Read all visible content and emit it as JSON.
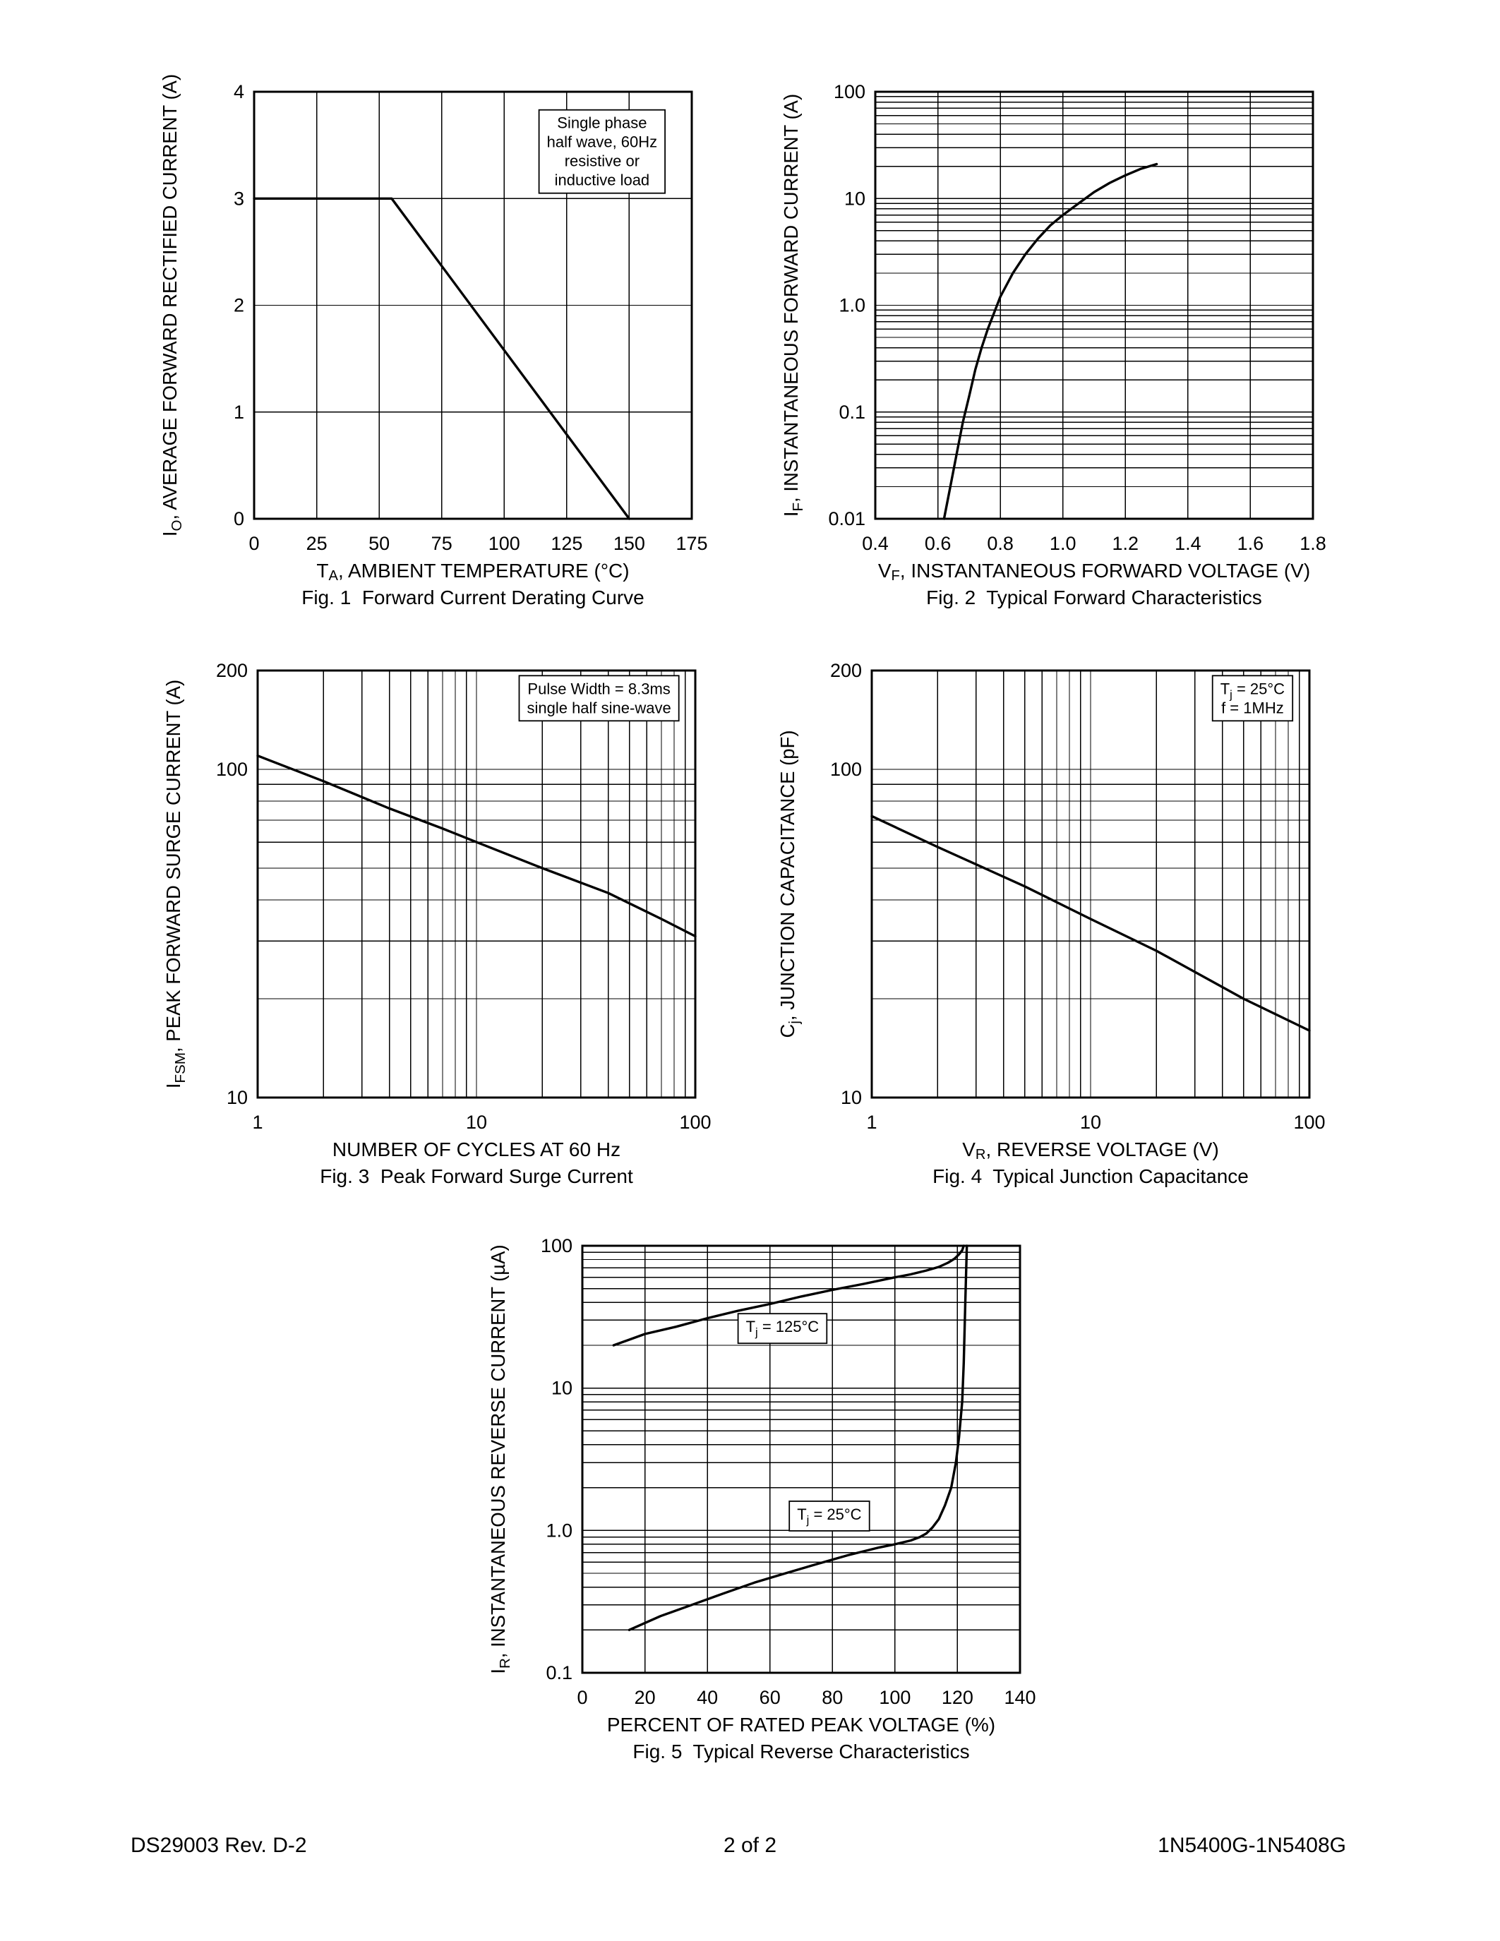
{
  "page": {
    "footer": {
      "left": "DS29003 Rev. D-2",
      "center": "2 of 2",
      "right": "1N5400G-1N5408G"
    }
  },
  "colors": {
    "ink": "#000000",
    "paper": "#ffffff"
  },
  "chart_data": [
    {
      "id": "fig1",
      "type": "line",
      "fig_caption": "Fig. 1  Forward Current Derating Curve",
      "x_axis": {
        "scale": "linear",
        "min": 0,
        "max": 175,
        "ticks": [
          0,
          25,
          50,
          75,
          100,
          125,
          150,
          175
        ],
        "tick_labels": [
          "0",
          "25",
          "50",
          "75",
          "100",
          "125",
          "150",
          "175"
        ],
        "label": "T~A~, AMBIENT TEMPERATURE (°C)"
      },
      "y_axis": {
        "scale": "linear",
        "min": 0,
        "max": 4,
        "ticks": [
          0,
          1,
          2,
          3,
          4
        ],
        "tick_labels": [
          "0",
          "1",
          "2",
          "3",
          "4"
        ],
        "label": "I~O~, AVERAGE FORWARD RECTIFIED CURRENT (A)"
      },
      "grid": true,
      "legend": "none",
      "series": [
        {
          "name": "derating-curve",
          "points": [
            [
              0,
              3
            ],
            [
              55,
              3
            ],
            [
              150,
              0
            ]
          ]
        }
      ],
      "annotations": [
        {
          "lines": [
            "Single phase",
            "half wave, 60Hz",
            "resistive or",
            "inductive load"
          ],
          "fx": 0.795,
          "fy": 0.14,
          "box": true
        }
      ]
    },
    {
      "id": "fig2",
      "type": "line",
      "fig_caption": "Fig. 2  Typical Forward Characteristics",
      "x_axis": {
        "scale": "linear",
        "min": 0.4,
        "max": 1.8,
        "ticks": [
          0.4,
          0.6,
          0.8,
          1.0,
          1.2,
          1.4,
          1.6,
          1.8
        ],
        "tick_labels": [
          "0.4",
          "0.6",
          "0.8",
          "1.0",
          "1.2",
          "1.4",
          "1.6",
          "1.8"
        ],
        "label": "V~F~, INSTANTANEOUS FORWARD VOLTAGE (V)"
      },
      "y_axis": {
        "scale": "log",
        "min": 0.01,
        "max": 100,
        "ticks": [
          0.01,
          0.1,
          1,
          10,
          100
        ],
        "tick_labels": [
          "0.01",
          "0.1",
          "1.0",
          "10",
          "100"
        ],
        "label": "I~F~, INSTANTANEOUS FORWARD CURRENT (A)"
      },
      "grid": true,
      "legend": "none",
      "series": [
        {
          "name": "forward-characteristic",
          "points": [
            [
              0.62,
              0.01
            ],
            [
              0.64,
              0.02
            ],
            [
              0.66,
              0.04
            ],
            [
              0.68,
              0.08
            ],
            [
              0.7,
              0.14
            ],
            [
              0.72,
              0.25
            ],
            [
              0.74,
              0.4
            ],
            [
              0.76,
              0.6
            ],
            [
              0.78,
              0.85
            ],
            [
              0.8,
              1.2
            ],
            [
              0.84,
              2.0
            ],
            [
              0.88,
              3.0
            ],
            [
              0.92,
              4.2
            ],
            [
              0.96,
              5.6
            ],
            [
              1.0,
              7.0
            ],
            [
              1.05,
              9.0
            ],
            [
              1.1,
              11.5
            ],
            [
              1.15,
              14
            ],
            [
              1.2,
              16.5
            ],
            [
              1.25,
              19
            ],
            [
              1.3,
              21
            ]
          ]
        }
      ],
      "annotations": []
    },
    {
      "id": "fig3",
      "type": "line",
      "fig_caption": "Fig. 3  Peak Forward Surge Current",
      "x_axis": {
        "scale": "log",
        "min": 1,
        "max": 100,
        "ticks": [
          1,
          10,
          100
        ],
        "tick_labels": [
          "1",
          "10",
          "100"
        ],
        "label": "NUMBER OF CYCLES AT 60 Hz"
      },
      "y_axis": {
        "scale": "log",
        "min": 10,
        "max": 200,
        "ticks": [
          10,
          100,
          200
        ],
        "tick_labels": [
          "10",
          "100",
          "200"
        ],
        "label": "I~FSM~, PEAK FORWARD SURGE CURRENT (A)"
      },
      "grid": true,
      "legend": "none",
      "series": [
        {
          "name": "surge-current",
          "points": [
            [
              1,
              110
            ],
            [
              2,
              92
            ],
            [
              4,
              76
            ],
            [
              7,
              66
            ],
            [
              10,
              60
            ],
            [
              20,
              50
            ],
            [
              40,
              42
            ],
            [
              70,
              35
            ],
            [
              100,
              31
            ]
          ]
        }
      ],
      "annotations": [
        {
          "lines": [
            "Pulse Width = 8.3ms",
            "single half sine-wave"
          ],
          "fx": 0.78,
          "fy": 0.065,
          "box": true
        }
      ]
    },
    {
      "id": "fig4",
      "type": "line",
      "fig_caption": "Fig. 4  Typical Junction Capacitance",
      "x_axis": {
        "scale": "log",
        "min": 1,
        "max": 100,
        "ticks": [
          1,
          10,
          100
        ],
        "tick_labels": [
          "1",
          "10",
          "100"
        ],
        "label": "V~R~, REVERSE VOLTAGE (V)"
      },
      "y_axis": {
        "scale": "log",
        "min": 10,
        "max": 200,
        "ticks": [
          10,
          100,
          200
        ],
        "tick_labels": [
          "10",
          "100",
          "200"
        ],
        "label": "C~j~, JUNCTION CAPACITANCE (pF)"
      },
      "grid": true,
      "legend": "none",
      "series": [
        {
          "name": "junction-capacitance",
          "points": [
            [
              1,
              72
            ],
            [
              2,
              58
            ],
            [
              5,
              44
            ],
            [
              10,
              35
            ],
            [
              20,
              28
            ],
            [
              50,
              20
            ],
            [
              100,
              16
            ]
          ]
        }
      ],
      "annotations": [
        {
          "lines": [
            "T~j~ = 25°C",
            "f = 1MHz"
          ],
          "fx": 0.87,
          "fy": 0.065,
          "box": true
        }
      ]
    },
    {
      "id": "fig5",
      "type": "line",
      "fig_caption": "Fig. 5  Typical Reverse Characteristics",
      "x_axis": {
        "scale": "linear",
        "min": 0,
        "max": 140,
        "ticks": [
          0,
          20,
          40,
          60,
          80,
          100,
          120,
          140
        ],
        "tick_labels": [
          "0",
          "20",
          "40",
          "60",
          "80",
          "100",
          "120",
          "140"
        ],
        "label": "PERCENT OF RATED PEAK VOLTAGE (%)"
      },
      "y_axis": {
        "scale": "log",
        "min": 0.1,
        "max": 100,
        "ticks": [
          0.1,
          1,
          10,
          100
        ],
        "tick_labels": [
          "0.1",
          "1.0",
          "10",
          "100"
        ],
        "label": "I~R~, INSTANTANEOUS REVERSE CURRENT (µA)"
      },
      "grid": true,
      "legend": "none",
      "series": [
        {
          "name": "tj-125c",
          "points": [
            [
              10,
              20
            ],
            [
              20,
              24
            ],
            [
              30,
              27
            ],
            [
              40,
              31
            ],
            [
              50,
              35
            ],
            [
              60,
              39
            ],
            [
              70,
              44
            ],
            [
              80,
              49
            ],
            [
              90,
              54
            ],
            [
              100,
              60
            ],
            [
              105,
              63
            ],
            [
              110,
              67
            ],
            [
              114,
              71
            ],
            [
              117,
              76
            ],
            [
              119,
              81
            ],
            [
              120.5,
              87
            ],
            [
              121.5,
              93
            ],
            [
              122,
              100
            ]
          ]
        },
        {
          "name": "tj-25c",
          "points": [
            [
              15,
              0.2
            ],
            [
              25,
              0.25
            ],
            [
              35,
              0.3
            ],
            [
              45,
              0.36
            ],
            [
              55,
              0.43
            ],
            [
              65,
              0.5
            ],
            [
              75,
              0.58
            ],
            [
              85,
              0.67
            ],
            [
              95,
              0.76
            ],
            [
              100,
              0.8
            ],
            [
              105,
              0.85
            ],
            [
              108,
              0.9
            ],
            [
              110,
              0.95
            ],
            [
              112,
              1.05
            ],
            [
              114,
              1.2
            ],
            [
              116,
              1.5
            ],
            [
              118,
              2.0
            ],
            [
              119.5,
              3
            ],
            [
              120.5,
              4.5
            ],
            [
              121.5,
              8
            ],
            [
              122,
              15
            ],
            [
              122.5,
              40
            ],
            [
              123,
              100
            ]
          ]
        }
      ],
      "annotations": [
        {
          "lines": [
            "T~j~ = 125°C"
          ],
          "x": 64,
          "y": 27,
          "box": true
        },
        {
          "lines": [
            "T~j~ = 25°C"
          ],
          "x": 79,
          "y": 1.3,
          "box": true
        }
      ]
    }
  ]
}
